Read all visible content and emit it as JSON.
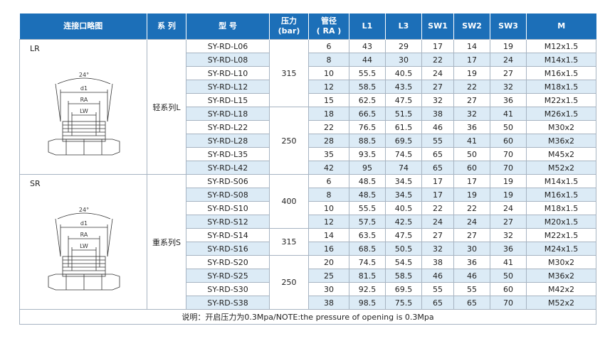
{
  "headers": {
    "conn": "连接口略图",
    "series": "系 列",
    "model": "型 号",
    "pressure": [
      "压力",
      "(bar)"
    ],
    "tube": [
      "管径",
      "( RA )"
    ],
    "l1": "L1",
    "l3": "L3",
    "sw1": "SW1",
    "sw2": "SW2",
    "sw3": "SW3",
    "m": "M"
  },
  "groups": [
    {
      "diagram_label": "LR",
      "series": "轻系列L",
      "diagram_text": {
        "angle": "24°",
        "d1": "d1",
        "ra": "RA",
        "lw": "LW"
      },
      "pressure_blocks": [
        {
          "pressure": "315",
          "rows": [
            {
              "model": "SY-RD-L06",
              "ra": "6",
              "l1": "43",
              "l3": "29",
              "sw1": "17",
              "sw2": "14",
              "sw3": "19",
              "m": "M12x1.5"
            },
            {
              "model": "SY-RD-L08",
              "ra": "8",
              "l1": "44",
              "l3": "30",
              "sw1": "22",
              "sw2": "17",
              "sw3": "24",
              "m": "M14x1.5"
            },
            {
              "model": "SY-RD-L10",
              "ra": "10",
              "l1": "55.5",
              "l3": "40.5",
              "sw1": "24",
              "sw2": "19",
              "sw3": "27",
              "m": "M16x1.5"
            },
            {
              "model": "SY-RD-L12",
              "ra": "12",
              "l1": "58.5",
              "l3": "43.5",
              "sw1": "27",
              "sw2": "22",
              "sw3": "32",
              "m": "M18x1.5"
            },
            {
              "model": "SY-RD-L15",
              "ra": "15",
              "l1": "62.5",
              "l3": "47.5",
              "sw1": "32",
              "sw2": "27",
              "sw3": "36",
              "m": "M22x1.5"
            }
          ]
        },
        {
          "pressure": "250",
          "rows": [
            {
              "model": "SY-RD-L18",
              "ra": "18",
              "l1": "66.5",
              "l3": "51.5",
              "sw1": "38",
              "sw2": "32",
              "sw3": "41",
              "m": "M26x1.5"
            },
            {
              "model": "SY-RD-L22",
              "ra": "22",
              "l1": "76.5",
              "l3": "61.5",
              "sw1": "46",
              "sw2": "36",
              "sw3": "50",
              "m": "M30x2"
            },
            {
              "model": "SY-RD-L28",
              "ra": "28",
              "l1": "88.5",
              "l3": "69.5",
              "sw1": "55",
              "sw2": "41",
              "sw3": "60",
              "m": "M36x2"
            },
            {
              "model": "SY-RD-L35",
              "ra": "35",
              "l1": "93.5",
              "l3": "74.5",
              "sw1": "65",
              "sw2": "50",
              "sw3": "70",
              "m": "M45x2"
            },
            {
              "model": "SY-RD-L42",
              "ra": "42",
              "l1": "95",
              "l3": "74",
              "sw1": "65",
              "sw2": "60",
              "sw3": "70",
              "m": "M52x2"
            }
          ]
        }
      ]
    },
    {
      "diagram_label": "SR",
      "series": "重系列S",
      "diagram_text": {
        "angle": "24°",
        "d1": "d1",
        "ra": "RA",
        "lw": "LW"
      },
      "pressure_blocks": [
        {
          "pressure": "400",
          "rows": [
            {
              "model": "SY-RD-S06",
              "ra": "6",
              "l1": "48.5",
              "l3": "34.5",
              "sw1": "17",
              "sw2": "17",
              "sw3": "19",
              "m": "M14x1.5"
            },
            {
              "model": "SY-RD-S08",
              "ra": "8",
              "l1": "48.5",
              "l3": "34.5",
              "sw1": "17",
              "sw2": "19",
              "sw3": "19",
              "m": "M16x1.5"
            },
            {
              "model": "SY-RD-S10",
              "ra": "10",
              "l1": "55.5",
              "l3": "40.5",
              "sw1": "22",
              "sw2": "22",
              "sw3": "24",
              "m": "M18x1.5"
            },
            {
              "model": "SY-RD-S12",
              "ra": "12",
              "l1": "57.5",
              "l3": "42.5",
              "sw1": "24",
              "sw2": "24",
              "sw3": "27",
              "m": "M20x1.5"
            }
          ]
        },
        {
          "pressure": "315",
          "rows": [
            {
              "model": "SY-RD-S14",
              "ra": "14",
              "l1": "63.5",
              "l3": "47.5",
              "sw1": "27",
              "sw2": "27",
              "sw3": "32",
              "m": "M22x1.5"
            },
            {
              "model": "SY-RD-S16",
              "ra": "16",
              "l1": "68.5",
              "l3": "50.5",
              "sw1": "32",
              "sw2": "30",
              "sw3": "36",
              "m": "M24x1.5"
            }
          ]
        },
        {
          "pressure": "250",
          "rows": [
            {
              "model": "SY-RD-S20",
              "ra": "20",
              "l1": "74.5",
              "l3": "54.5",
              "sw1": "38",
              "sw2": "36",
              "sw3": "41",
              "m": "M30x2"
            },
            {
              "model": "SY-RD-S25",
              "ra": "25",
              "l1": "81.5",
              "l3": "58.5",
              "sw1": "46",
              "sw2": "46",
              "sw3": "50",
              "m": "M36x2"
            },
            {
              "model": "SY-RD-S30",
              "ra": "30",
              "l1": "92.5",
              "l3": "69.5",
              "sw1": "55",
              "sw2": "55",
              "sw3": "60",
              "m": "M42x2"
            },
            {
              "model": "SY-RD-S38",
              "ra": "38",
              "l1": "98.5",
              "l3": "75.5",
              "sw1": "65",
              "sw2": "65",
              "sw3": "70",
              "m": "M52x2"
            }
          ]
        }
      ]
    }
  ],
  "note": "说明：开启压力为0.3Mpa/NOTE:the pressure of opening is 0.3Mpa",
  "colors": {
    "header_bg": "#1c6fb8",
    "stripe": "#dcebf6",
    "border": "#a7b4c2"
  }
}
